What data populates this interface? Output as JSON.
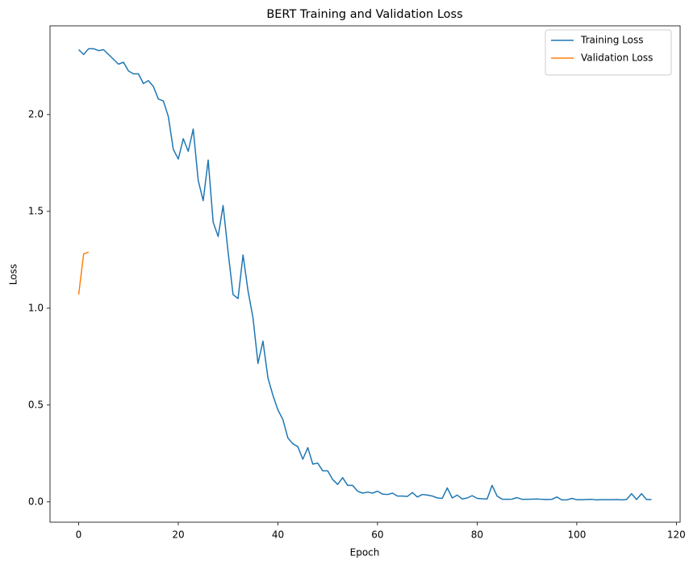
{
  "chart_data": {
    "type": "line",
    "title": "BERT Training and Validation Loss",
    "x_label": "Epoch",
    "y_label": "Loss",
    "x": [
      0,
      1,
      2,
      3,
      4,
      5,
      6,
      7,
      8,
      9,
      10,
      11,
      12,
      13,
      14,
      15,
      16,
      17,
      18,
      19,
      20,
      21,
      22,
      23,
      24,
      25,
      26,
      27,
      28,
      29,
      30,
      31,
      32,
      33,
      34,
      35,
      36,
      37,
      38,
      39,
      40,
      41,
      42,
      43,
      44,
      45,
      46,
      47,
      48,
      49,
      50,
      51,
      52,
      53,
      54,
      55,
      56,
      57,
      58,
      59,
      60,
      61,
      62,
      63,
      64,
      65,
      66,
      67,
      68,
      69,
      70,
      71,
      72,
      73,
      74,
      75,
      76,
      77,
      78,
      79,
      80,
      81,
      82,
      83,
      84,
      85,
      86,
      87,
      88,
      89,
      90,
      91,
      92,
      93,
      94,
      95,
      96,
      97,
      98,
      99,
      100,
      101,
      102,
      103,
      104,
      105,
      106,
      107,
      108,
      109,
      110,
      111,
      112,
      113,
      114,
      115
    ],
    "series": [
      {
        "name": "Training Loss",
        "color": "#1f77b4",
        "values": [
          2.335,
          2.31,
          2.34,
          2.34,
          2.33,
          2.335,
          2.31,
          2.285,
          2.26,
          2.27,
          2.225,
          2.21,
          2.21,
          2.16,
          2.175,
          2.145,
          2.08,
          2.07,
          1.99,
          1.82,
          1.77,
          1.875,
          1.81,
          1.925,
          1.66,
          1.555,
          1.765,
          1.445,
          1.37,
          1.53,
          1.29,
          1.07,
          1.05,
          1.275,
          1.09,
          0.95,
          0.715,
          0.83,
          0.64,
          0.55,
          0.475,
          0.425,
          0.33,
          0.3,
          0.285,
          0.22,
          0.28,
          0.195,
          0.2,
          0.16,
          0.16,
          0.115,
          0.09,
          0.125,
          0.085,
          0.085,
          0.055,
          0.045,
          0.05,
          0.045,
          0.055,
          0.04,
          0.038,
          0.045,
          0.03,
          0.03,
          0.028,
          0.048,
          0.025,
          0.038,
          0.035,
          0.03,
          0.02,
          0.018,
          0.072,
          0.02,
          0.035,
          0.015,
          0.02,
          0.032,
          0.018,
          0.016,
          0.015,
          0.085,
          0.03,
          0.014,
          0.013,
          0.014,
          0.022,
          0.013,
          0.013,
          0.014,
          0.015,
          0.013,
          0.012,
          0.013,
          0.025,
          0.01,
          0.01,
          0.018,
          0.011,
          0.011,
          0.012,
          0.013,
          0.01,
          0.011,
          0.011,
          0.011,
          0.012,
          0.01,
          0.012,
          0.042,
          0.012,
          0.042,
          0.012,
          0.012
        ]
      },
      {
        "name": "Validation Loss",
        "color": "#ff7f0e",
        "x": [
          0,
          1,
          2
        ],
        "values": [
          1.07,
          1.28,
          1.29
        ]
      }
    ],
    "xlim": [
      -5.75,
      120.75
    ],
    "ylim": [
      -0.105,
      2.458
    ],
    "xticks": [
      0,
      20,
      40,
      60,
      80,
      100,
      120
    ],
    "yticks": [
      {
        "value": 0,
        "label": "0.0"
      },
      0.5,
      {
        "value": 1,
        "label": "1.0"
      },
      1.5,
      {
        "value": 2,
        "label": "2.0"
      }
    ],
    "grid": false,
    "legend_position": "upper right"
  }
}
